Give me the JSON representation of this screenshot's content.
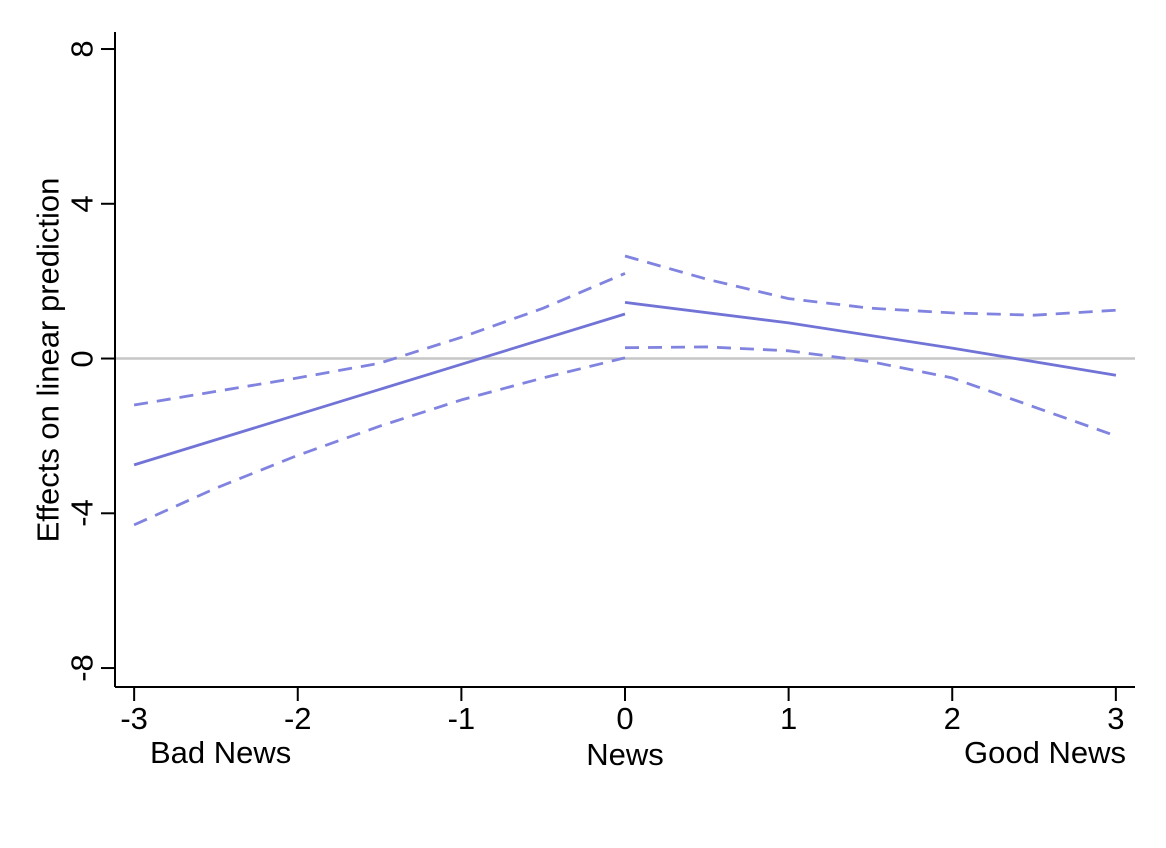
{
  "chart_data": {
    "type": "line",
    "title": "",
    "xlabel": "News",
    "ylabel": "Effects on linear prediction",
    "x_axis_annotations": {
      "left": "Bad News",
      "center": "News",
      "right": "Good News"
    },
    "x_ticks": [
      -3,
      -2,
      -1,
      0,
      1,
      2,
      3
    ],
    "y_ticks": [
      -8,
      -4,
      0,
      4,
      8
    ],
    "xlim": [
      -3.117,
      3.117
    ],
    "ylim": [
      -8.49,
      8.44
    ],
    "grid": false,
    "legend": "none",
    "reference_line_y": 0,
    "colors": {
      "line": "#7174d6",
      "ci": "#8083df",
      "reference": "#c6c6c6",
      "axis": "#000000"
    },
    "series": [
      {
        "name": "prediction-left",
        "style": "solid",
        "points": [
          [
            -3,
            -2.75
          ],
          [
            0,
            1.15
          ]
        ]
      },
      {
        "name": "prediction-right",
        "style": "solid",
        "points": [
          [
            0,
            1.45
          ],
          [
            1,
            0.92
          ],
          [
            2,
            0.27
          ],
          [
            3,
            -0.43
          ]
        ]
      },
      {
        "name": "ci-upper-left",
        "style": "dashed",
        "points": [
          [
            -3,
            -1.2
          ],
          [
            -2.5,
            -0.85
          ],
          [
            -2,
            -0.5
          ],
          [
            -1.5,
            -0.12
          ],
          [
            -1,
            0.55
          ],
          [
            -0.5,
            1.3
          ],
          [
            0,
            2.2
          ]
        ]
      },
      {
        "name": "ci-upper-right",
        "style": "dashed",
        "points": [
          [
            0,
            2.65
          ],
          [
            0.5,
            2.05
          ],
          [
            1,
            1.55
          ],
          [
            1.5,
            1.3
          ],
          [
            2,
            1.18
          ],
          [
            2.5,
            1.12
          ],
          [
            3,
            1.25
          ]
        ]
      },
      {
        "name": "ci-lower-left",
        "style": "dashed",
        "points": [
          [
            -3,
            -4.3
          ],
          [
            -2.5,
            -3.35
          ],
          [
            -2,
            -2.5
          ],
          [
            -1.5,
            -1.75
          ],
          [
            -1,
            -1.07
          ],
          [
            -0.5,
            -0.5
          ],
          [
            0,
            0.02
          ]
        ]
      },
      {
        "name": "ci-lower-right",
        "style": "dashed",
        "points": [
          [
            0,
            0.28
          ],
          [
            0.5,
            0.3
          ],
          [
            1,
            0.2
          ],
          [
            1.5,
            -0.08
          ],
          [
            2,
            -0.5
          ],
          [
            2.5,
            -1.25
          ],
          [
            3,
            -2.0
          ]
        ]
      }
    ]
  }
}
